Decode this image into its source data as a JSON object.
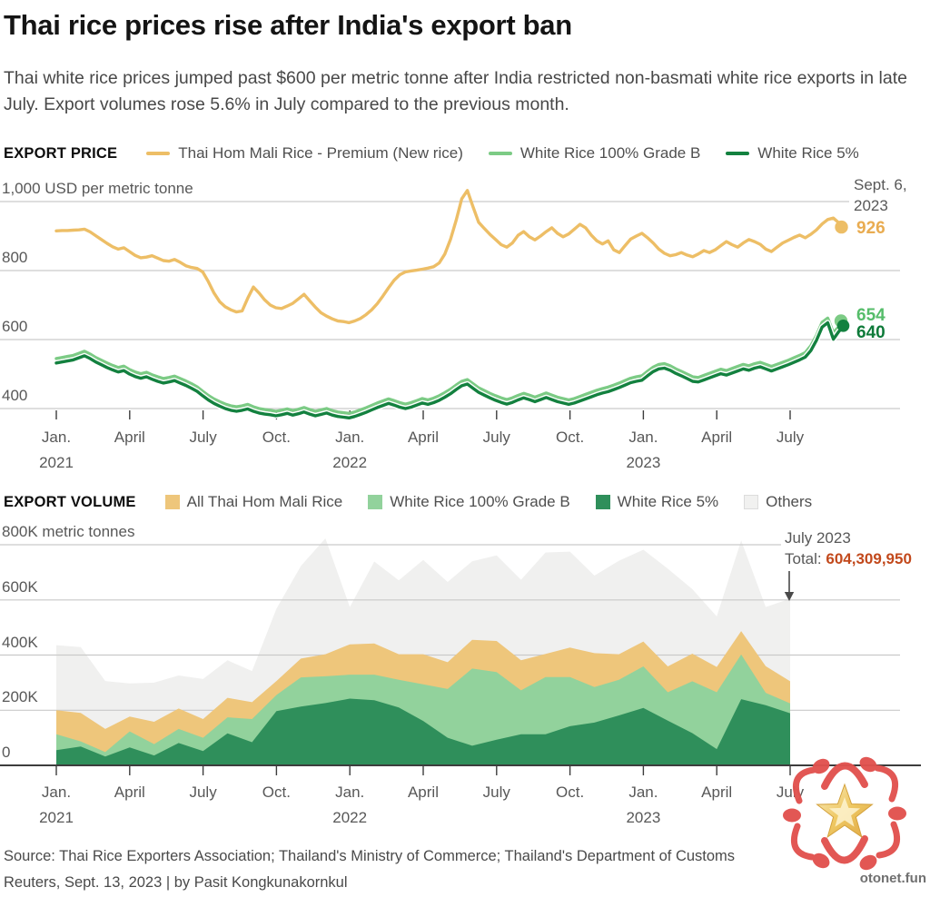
{
  "header": {
    "title": "Thai rice prices rise after India's export ban",
    "subtitle": "Thai white rice prices jumped past $600 per metric tonne after India restricted non-basmati white rice exports in late July. Export volumes rose 5.6% in July compared to the previous month."
  },
  "chart_data": [
    {
      "id": "export-price",
      "type": "line",
      "section_label": "EXPORT PRICE",
      "frequency": "weekly",
      "x_start": "Jan. 2021",
      "x_end": "Sept. 6, 2023",
      "ylim": [
        370,
        1040
      ],
      "grid": true,
      "legend_position": "top",
      "x_ticks": [
        {
          "label": "Jan.",
          "year": "2021"
        },
        {
          "label": "April"
        },
        {
          "label": "July"
        },
        {
          "label": "Oct."
        },
        {
          "label": "Jan.",
          "year": "2022"
        },
        {
          "label": "April"
        },
        {
          "label": "July"
        },
        {
          "label": "Oct."
        },
        {
          "label": "Jan.",
          "year": "2023"
        },
        {
          "label": "April"
        },
        {
          "label": "July"
        }
      ],
      "y_ticks": [
        {
          "value": 1000,
          "label": "1,000 USD per metric tonne"
        },
        {
          "value": 800,
          "label": "800"
        },
        {
          "value": 600,
          "label": "600"
        },
        {
          "value": 400,
          "label": "400"
        }
      ],
      "annotation": {
        "line1": "Sept. 6,",
        "line2": "2023"
      },
      "series": [
        {
          "name": "Thai Hom Mali Rice - Premium (New rice)",
          "color": "#edbe66",
          "label_color": "#e9ac51",
          "end_label": "926",
          "values": [
            915,
            916,
            916,
            917,
            918,
            920,
            912,
            901,
            890,
            879,
            869,
            862,
            866,
            855,
            844,
            837,
            839,
            843,
            836,
            829,
            827,
            832,
            824,
            814,
            809,
            806,
            796,
            768,
            735,
            710,
            695,
            686,
            680,
            683,
            720,
            752,
            735,
            715,
            700,
            692,
            690,
            697,
            705,
            718,
            731,
            712,
            694,
            678,
            668,
            660,
            654,
            652,
            649,
            654,
            661,
            672,
            686,
            704,
            726,
            750,
            772,
            788,
            796,
            799,
            801,
            804,
            807,
            811,
            822,
            848,
            890,
            945,
            1008,
            1032,
            985,
            940,
            922,
            905,
            890,
            875,
            868,
            880,
            902,
            913,
            898,
            889,
            900,
            913,
            924,
            908,
            898,
            906,
            920,
            934,
            924,
            903,
            886,
            877,
            886,
            860,
            852,
            872,
            891,
            900,
            908,
            895,
            880,
            862,
            850,
            843,
            846,
            852,
            845,
            840,
            848,
            858,
            852,
            860,
            872,
            884,
            875,
            868,
            880,
            890,
            884,
            876,
            862,
            855,
            868,
            880,
            888,
            896,
            903,
            895,
            905,
            918,
            935,
            948,
            952,
            938,
            926
          ]
        },
        {
          "name": "White Rice 100% Grade B",
          "color": "#7ccb85",
          "label_color": "#56bd6a",
          "end_label": "654",
          "values": [
            545,
            548,
            551,
            554,
            560,
            566,
            558,
            548,
            540,
            532,
            525,
            519,
            523,
            513,
            506,
            501,
            505,
            498,
            492,
            487,
            490,
            494,
            487,
            480,
            472,
            463,
            450,
            438,
            428,
            420,
            413,
            408,
            405,
            408,
            412,
            405,
            400,
            397,
            395,
            392,
            395,
            399,
            394,
            398,
            403,
            397,
            392,
            396,
            400,
            394,
            390,
            388,
            386,
            390,
            396,
            402,
            409,
            416,
            422,
            428,
            423,
            417,
            413,
            417,
            423,
            429,
            425,
            430,
            437,
            446,
            456,
            468,
            479,
            484,
            472,
            460,
            452,
            444,
            437,
            431,
            426,
            431,
            438,
            444,
            439,
            433,
            439,
            445,
            439,
            433,
            429,
            425,
            429,
            435,
            441,
            447,
            453,
            458,
            462,
            468,
            474,
            481,
            488,
            492,
            495,
            508,
            520,
            528,
            530,
            524,
            515,
            508,
            500,
            492,
            490,
            496,
            502,
            508,
            514,
            510,
            516,
            522,
            528,
            524,
            530,
            534,
            528,
            522,
            528,
            534,
            540,
            547,
            554,
            562,
            582,
            612,
            650,
            662,
            620,
            638,
            654
          ]
        },
        {
          "name": "White Rice 5%",
          "color": "#13813f",
          "label_color": "#0e7a39",
          "end_label": "640",
          "values": [
            532,
            535,
            538,
            541,
            547,
            553,
            545,
            535,
            527,
            519,
            512,
            506,
            510,
            500,
            493,
            488,
            492,
            485,
            479,
            474,
            477,
            481,
            474,
            467,
            459,
            450,
            437,
            425,
            415,
            407,
            400,
            395,
            392,
            395,
            399,
            392,
            387,
            384,
            382,
            379,
            382,
            386,
            381,
            385,
            390,
            384,
            379,
            383,
            387,
            381,
            377,
            375,
            373,
            377,
            383,
            389,
            396,
            403,
            409,
            415,
            410,
            404,
            400,
            404,
            410,
            416,
            412,
            417,
            424,
            433,
            443,
            455,
            466,
            471,
            459,
            447,
            439,
            431,
            424,
            418,
            413,
            418,
            425,
            431,
            426,
            420,
            426,
            432,
            426,
            420,
            416,
            412,
            416,
            422,
            428,
            434,
            440,
            445,
            449,
            455,
            461,
            468,
            475,
            479,
            482,
            495,
            507,
            515,
            517,
            511,
            502,
            495,
            487,
            479,
            477,
            483,
            489,
            495,
            501,
            497,
            503,
            509,
            515,
            511,
            517,
            521,
            515,
            509,
            515,
            521,
            527,
            534,
            541,
            549,
            568,
            598,
            636,
            649,
            601,
            624,
            640
          ]
        }
      ]
    },
    {
      "id": "export-volume",
      "type": "area",
      "section_label": "EXPORT VOLUME",
      "frequency": "monthly",
      "x_start": "Jan. 2021",
      "x_end": "July 2023",
      "unit_note": "values in thousand metric tonnes, stacked",
      "ylim": [
        0,
        830
      ],
      "grid": true,
      "x_ticks": [
        {
          "label": "Jan.",
          "year": "2021"
        },
        {
          "label": "April"
        },
        {
          "label": "July"
        },
        {
          "label": "Oct."
        },
        {
          "label": "Jan.",
          "year": "2022"
        },
        {
          "label": "April"
        },
        {
          "label": "July"
        },
        {
          "label": "Oct."
        },
        {
          "label": "Jan.",
          "year": "2023"
        },
        {
          "label": "April"
        },
        {
          "label": "July"
        }
      ],
      "y_ticks": [
        {
          "value": 800,
          "label": "800K metric tonnes"
        },
        {
          "value": 600,
          "label": "600K"
        },
        {
          "value": 400,
          "label": "400K"
        },
        {
          "value": 200,
          "label": "200K"
        },
        {
          "value": 0,
          "label": "0"
        }
      ],
      "annotation": {
        "line1": "July 2023",
        "total_label": "Total:",
        "total_value": "604,309,950"
      },
      "legend": [
        {
          "label": "All Thai Hom Mali Rice",
          "color": "#eec67b",
          "border": "#eec67b"
        },
        {
          "label": "White Rice 100% Grade B",
          "color": "#92d29c",
          "border": "#92d29c"
        },
        {
          "label": "White Rice 5%",
          "color": "#2f8f5b",
          "border": "#2f8f5b"
        },
        {
          "label": "Others",
          "color": "#f1f1f0",
          "border": "#dcdcdc"
        }
      ],
      "series": [
        {
          "name": "White Rice 5%",
          "color": "#2f8f5b",
          "values": [
            55,
            68,
            32,
            65,
            36,
            81,
            52,
            116,
            84,
            197,
            213,
            226,
            242,
            236,
            210,
            161,
            100,
            71,
            93,
            113,
            113,
            142,
            155,
            181,
            208,
            162,
            117,
            59,
            240,
            218,
            189
          ]
        },
        {
          "name": "White Rice 100% Grade B",
          "color": "#92d29c",
          "values": [
            58,
            19,
            16,
            58,
            41,
            51,
            48,
            58,
            84,
            58,
            106,
            97,
            87,
            93,
            100,
            133,
            177,
            280,
            245,
            159,
            207,
            178,
            129,
            129,
            151,
            103,
            188,
            206,
            162,
            45,
            36
          ]
        },
        {
          "name": "All Thai Hom Mali Rice",
          "color": "#eec67b",
          "values": [
            87,
            103,
            84,
            54,
            81,
            74,
            68,
            71,
            61,
            51,
            68,
            80,
            110,
            113,
            93,
            109,
            97,
            104,
            113,
            109,
            84,
            107,
            123,
            93,
            90,
            94,
            100,
            92,
            85,
            97,
            80
          ]
        },
        {
          "name": "Others",
          "color": "#f0f0ef",
          "values": [
            236,
            239,
            174,
            120,
            142,
            120,
            145,
            136,
            113,
            262,
            336,
            420,
            135,
            297,
            268,
            342,
            291,
            285,
            310,
            292,
            368,
            348,
            281,
            339,
            333,
            354,
            234,
            183,
            328,
            214,
            299
          ]
        }
      ]
    }
  ],
  "footer": {
    "source": "Source: Thai Rice Exporters Association; Thailand's Ministry of Commerce; Thailand's Department of Customs",
    "credit": "Reuters, Sept. 13, 2023 | by Pasit Kongkunakornkul"
  },
  "watermark": {
    "text": "otonet.fun"
  }
}
